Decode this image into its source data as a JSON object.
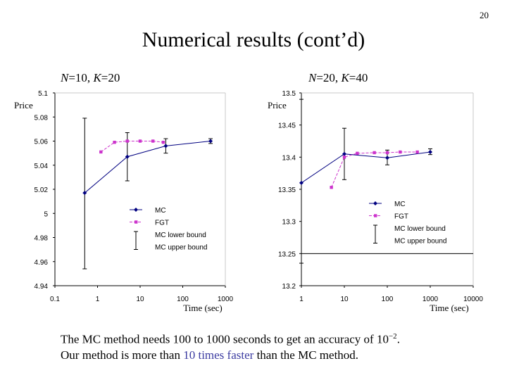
{
  "slide": {
    "page_number": "20",
    "title": "Numerical results (cont’d)",
    "left_caption": {
      "n_var": "N",
      "n_val": "=10, ",
      "k_var": "K",
      "k_val": "=20"
    },
    "right_caption": {
      "n_var": "N",
      "n_val": "=20, ",
      "k_var": "K",
      "k_val": "=40"
    },
    "text": {
      "line1_pre": "The MC method needs 100 to 1000 seconds to get an accuracy of 10",
      "line1_sup": "−2",
      "line1_post": ".",
      "line2_pre": "Our method is more than ",
      "line2_highlight": "10 times faster",
      "line2_post": " than the MC method."
    },
    "colors": {
      "mc": "#000080",
      "fgt": "#cc33cc",
      "highlight": "#3a3aa0"
    }
  },
  "chart_data": [
    {
      "type": "line",
      "xscale": "log",
      "xlim": [
        0.1,
        1000
      ],
      "ylim": [
        4.94,
        5.1
      ],
      "xticks": [
        0.1,
        1,
        10,
        100,
        1000
      ],
      "xtick_labels": [
        "0.1",
        "1",
        "10",
        "100",
        "1000"
      ],
      "yticks": [
        4.94,
        4.96,
        4.98,
        5,
        5.02,
        5.04,
        5.06,
        5.08,
        5.1
      ],
      "ytick_labels": [
        "4.94",
        "4.96",
        "4.98",
        "5",
        "5.02",
        "5.04",
        "5.06",
        "5.08",
        "5.1"
      ],
      "xlabel": "Time (sec)",
      "ylabel": "Price",
      "grid": false,
      "legend_position": "lower-right",
      "series": [
        {
          "name": "MC",
          "x": [
            0.5,
            5,
            40,
            450
          ],
          "y": [
            5.017,
            5.047,
            5.056,
            5.06
          ]
        },
        {
          "name": "FGT",
          "x": [
            1.2,
            2.5,
            5,
            10,
            20,
            35
          ],
          "y": [
            5.051,
            5.059,
            5.06,
            5.06,
            5.06,
            5.059
          ]
        },
        {
          "name": "MC lower bound",
          "x": [
            0.5,
            5,
            40,
            450
          ],
          "y": [
            4.954,
            5.027,
            5.05,
            5.058
          ]
        },
        {
          "name": "MC upper bound",
          "x": [
            0.5,
            5,
            40,
            450
          ],
          "y": [
            5.079,
            5.067,
            5.062,
            5.062
          ]
        }
      ]
    },
    {
      "type": "line",
      "xscale": "log",
      "xlim": [
        1,
        10000
      ],
      "ylim": [
        13.2,
        13.5
      ],
      "xticks": [
        1,
        10,
        100,
        1000,
        10000
      ],
      "xtick_labels": [
        "1",
        "10",
        "100",
        "1000",
        "10000"
      ],
      "yticks": [
        13.2,
        13.25,
        13.3,
        13.35,
        13.4,
        13.45,
        13.5
      ],
      "ytick_labels": [
        "13.2",
        "13.25",
        "13.3",
        "13.35",
        "13.4",
        "13.45",
        "13.5"
      ],
      "xlabel": "Time (sec)",
      "ylabel": "Price",
      "grid": false,
      "legend_position": "lower-right",
      "series": [
        {
          "name": "MC",
          "x": [
            1,
            10,
            100,
            1000
          ],
          "y": [
            13.36,
            13.405,
            13.399,
            13.408
          ]
        },
        {
          "name": "FGT",
          "x": [
            5,
            10,
            20,
            50,
            100,
            200,
            500
          ],
          "y": [
            13.353,
            13.4,
            13.406,
            13.407,
            13.407,
            13.408,
            13.408
          ]
        },
        {
          "name": "MC lower bound",
          "x": [
            1,
            10,
            100,
            1000
          ],
          "y": [
            13.235,
            13.365,
            13.388,
            13.404
          ]
        },
        {
          "name": "MC upper bound",
          "x": [
            1,
            10,
            100,
            1000
          ],
          "y": [
            13.49,
            13.445,
            13.411,
            13.413
          ]
        }
      ]
    }
  ]
}
